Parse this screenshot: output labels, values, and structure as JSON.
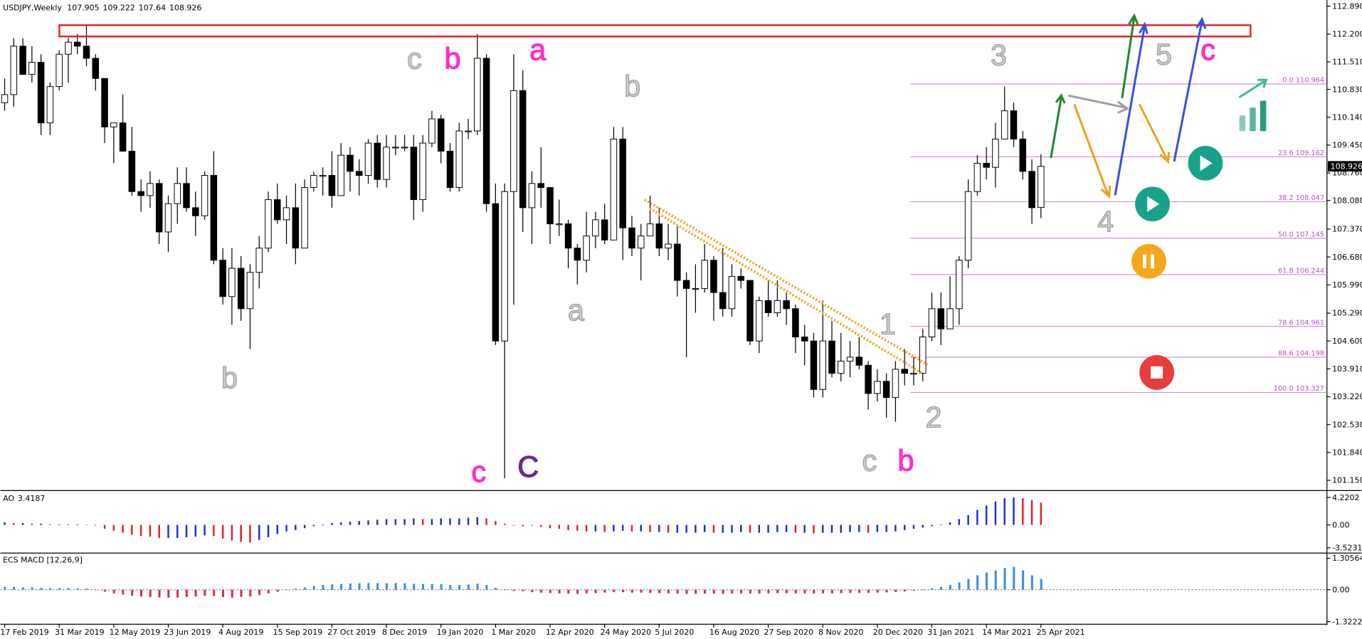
{
  "chart_data": [
    {
      "type": "candlestick",
      "title": "USDJPY,Weekly",
      "x_labels": [
        "17 Feb 2019",
        "31 Mar 2019",
        "12 May 2019",
        "23 Jun 2019",
        "4 Aug 2019",
        "15 Sep 2019",
        "27 Oct 2019",
        "8 Dec 2019",
        "19 Jan 2020",
        "1 Mar 2020",
        "12 Apr 2020",
        "24 May 2020",
        "5 Jul 2020",
        "16 Aug 2020",
        "27 Sep 2020",
        "8 Nov 2020",
        "20 Dec 2020",
        "31 Jan 2021",
        "14 Mar 2021",
        "25 Apr 2021"
      ],
      "open": [
        110.5,
        110.7,
        111.9,
        111.2,
        111.5,
        110.0,
        110.9,
        111.7,
        112.0,
        111.9,
        111.6,
        111.1,
        109.9,
        110.0,
        109.3,
        108.3,
        108.2,
        108.5,
        107.3,
        108.0,
        108.5,
        107.9,
        107.7,
        108.7,
        106.6,
        105.7,
        106.4,
        105.4,
        106.3,
        106.9,
        108.1,
        107.6,
        107.9,
        106.9,
        108.4,
        108.7,
        108.7,
        108.2,
        109.2,
        108.8,
        108.7,
        109.5,
        108.6,
        109.4,
        109.4,
        109.4,
        108.1,
        109.5,
        110.1,
        109.3,
        108.4,
        109.8,
        109.8,
        111.6,
        108.0,
        104.6,
        108.3,
        110.8,
        107.9,
        108.5,
        108.4,
        107.5,
        107.5,
        106.9,
        106.6,
        107.2,
        107.6,
        107.1,
        109.6,
        107.4,
        106.9,
        107.2,
        107.5,
        106.9,
        107.0,
        106.1,
        105.9,
        105.9,
        106.6,
        105.8,
        105.4,
        106.2,
        106.1,
        104.6,
        105.6,
        105.3,
        105.6,
        105.4,
        104.7,
        104.6,
        103.4,
        104.6,
        103.8,
        104.1,
        104.2,
        104.0,
        103.3,
        103.6,
        103.2,
        103.9,
        103.8,
        103.8,
        104.7,
        105.4,
        104.9,
        105.4,
        106.6,
        108.3,
        109.0,
        108.9,
        109.6,
        110.3,
        109.6,
        108.8,
        107.905
      ],
      "high": [
        111.1,
        112.1,
        112.1,
        111.9,
        111.7,
        111.0,
        111.8,
        112.1,
        112.2,
        112.4,
        111.7,
        111.1,
        110.0,
        110.7,
        109.9,
        108.6,
        108.8,
        108.6,
        108.2,
        108.9,
        108.9,
        108.3,
        108.8,
        109.3,
        106.9,
        106.9,
        106.7,
        106.5,
        107.2,
        108.3,
        108.5,
        108.2,
        108.5,
        108.6,
        108.8,
        108.9,
        109.3,
        109.5,
        109.4,
        109.1,
        109.6,
        109.7,
        109.7,
        109.7,
        109.7,
        109.7,
        109.7,
        110.3,
        110.2,
        109.5,
        110.0,
        110.1,
        112.2,
        111.7,
        108.5,
        108.5,
        111.7,
        111.3,
        108.8,
        109.4,
        108.4,
        108.1,
        107.6,
        107.0,
        107.8,
        107.8,
        108.0,
        109.9,
        109.9,
        107.7,
        107.5,
        108.2,
        107.9,
        107.5,
        107.5,
        106.3,
        106.5,
        107.0,
        106.7,
        106.9,
        106.5,
        106.4,
        106.1,
        105.7,
        106.1,
        106.1,
        105.8,
        105.5,
        105.0,
        104.8,
        105.6,
        105.1,
        104.8,
        104.6,
        104.7,
        104.1,
        103.9,
        103.8,
        104.1,
        104.4,
        104.2,
        104.9,
        105.8,
        105.8,
        106.2,
        106.7,
        108.6,
        109.2,
        109.4,
        110.0,
        110.9,
        110.5,
        109.8,
        109.1,
        109.222
      ],
      "low": [
        110.3,
        110.4,
        111.2,
        111.0,
        109.7,
        109.7,
        110.8,
        111.0,
        111.7,
        111.4,
        110.8,
        109.5,
        109.0,
        109.3,
        108.2,
        107.8,
        107.9,
        107.0,
        106.8,
        107.5,
        107.8,
        107.2,
        107.6,
        106.5,
        105.5,
        105.0,
        105.1,
        104.4,
        105.9,
        106.8,
        107.5,
        107.0,
        106.5,
        106.9,
        108.3,
        108.2,
        107.9,
        108.2,
        108.3,
        108.2,
        108.5,
        108.4,
        108.4,
        109.2,
        109.3,
        107.6,
        107.8,
        109.4,
        109.0,
        108.3,
        108.3,
        109.6,
        109.7,
        107.8,
        104.5,
        101.2,
        105.5,
        107.3,
        107.0,
        107.9,
        107.0,
        107.2,
        106.4,
        106.0,
        106.3,
        106.9,
        107.0,
        107.1,
        106.6,
        106.7,
        106.1,
        107.2,
        106.7,
        106.6,
        105.7,
        104.2,
        105.3,
        105.8,
        105.1,
        105.2,
        105.2,
        105.9,
        104.5,
        104.3,
        105.2,
        105.2,
        105.0,
        104.3,
        104.0,
        103.2,
        103.2,
        103.7,
        103.6,
        103.7,
        103.9,
        102.9,
        103.1,
        102.7,
        102.6,
        103.5,
        103.5,
        103.6,
        104.6,
        104.5,
        104.9,
        105.0,
        106.4,
        108.2,
        108.6,
        108.4,
        109.6,
        109.4,
        108.6,
        107.5,
        107.64
      ],
      "close": [
        110.7,
        111.9,
        111.2,
        111.5,
        110.0,
        110.9,
        111.7,
        112.0,
        111.9,
        111.6,
        111.1,
        109.9,
        110.0,
        109.3,
        108.3,
        108.2,
        108.5,
        107.3,
        108.0,
        108.5,
        107.9,
        107.7,
        108.7,
        106.6,
        105.7,
        106.4,
        105.4,
        106.3,
        106.9,
        108.1,
        107.6,
        107.9,
        106.9,
        108.4,
        108.7,
        108.7,
        108.2,
        109.2,
        108.8,
        108.7,
        109.5,
        108.6,
        109.4,
        109.4,
        109.4,
        108.1,
        109.5,
        110.1,
        109.3,
        108.4,
        109.8,
        109.8,
        111.6,
        108.0,
        104.6,
        108.3,
        110.8,
        107.9,
        108.5,
        108.4,
        107.5,
        107.5,
        106.9,
        106.6,
        107.2,
        107.6,
        107.1,
        109.6,
        107.4,
        106.9,
        107.2,
        107.5,
        106.9,
        107.0,
        106.1,
        105.9,
        105.9,
        106.6,
        105.8,
        105.4,
        106.2,
        106.1,
        104.6,
        105.6,
        105.3,
        105.6,
        105.4,
        104.7,
        104.6,
        103.4,
        104.6,
        103.8,
        104.1,
        104.2,
        104.0,
        103.3,
        103.6,
        103.2,
        103.9,
        103.8,
        103.8,
        104.7,
        105.4,
        104.9,
        105.4,
        106.6,
        108.3,
        109.0,
        108.9,
        109.6,
        110.3,
        109.6,
        108.8,
        107.9,
        108.926
      ],
      "ylim": [
        100.94,
        113.0
      ],
      "yticks": [
        {
          "value": 112.89,
          "label": "112.890"
        },
        {
          "value": 112.2,
          "label": "112.200"
        },
        {
          "value": 111.51,
          "label": "111.510"
        },
        {
          "value": 110.83,
          "label": "110.830"
        },
        {
          "value": 110.14,
          "label": "110.140"
        },
        {
          "value": 109.45,
          "label": "109.450"
        },
        {
          "value": 108.76,
          "label": "108.760"
        },
        {
          "value": 108.08,
          "label": "108.080"
        },
        {
          "value": 107.37,
          "label": "107.370"
        },
        {
          "value": 106.68,
          "label": "106.680"
        },
        {
          "value": 105.99,
          "label": "105.990"
        },
        {
          "value": 105.29,
          "label": "105.290"
        },
        {
          "value": 104.6,
          "label": "104.600"
        },
        {
          "value": 103.91,
          "label": "103.910"
        },
        {
          "value": 103.22,
          "label": "103.220"
        },
        {
          "value": 102.53,
          "label": "102.530"
        },
        {
          "value": 101.84,
          "label": "101.840"
        },
        {
          "value": 101.15,
          "label": "101.150"
        }
      ],
      "fib_levels": [
        {
          "value": 110.964,
          "label": "0.0 110.964"
        },
        {
          "value": 109.162,
          "label": "23.6 109.162"
        },
        {
          "value": 108.047,
          "label": "38.2 108.047"
        },
        {
          "value": 107.145,
          "label": "50.0 107.145"
        },
        {
          "value": 106.244,
          "label": "61.8 106.244"
        },
        {
          "value": 104.961,
          "label": "78.6 104.961"
        },
        {
          "value": 104.198,
          "label": "88.6 104.198"
        },
        {
          "value": 103.327,
          "label": "100.0 103.327"
        }
      ],
      "annotations": [
        {
          "text": "c",
          "color": "#d0d0d0"
        },
        {
          "text": "b",
          "color": "#ff2fc8"
        },
        {
          "text": "a",
          "color": "#ff2fc8"
        },
        {
          "text": "b",
          "color": "#d0d0d0"
        },
        {
          "text": "3",
          "color": "#d0d0d0"
        },
        {
          "text": "5",
          "color": "#d0d0d0"
        },
        {
          "text": "c",
          "color": "#ff2fc8"
        },
        {
          "text": "b",
          "color": "#d0d0d0"
        },
        {
          "text": "a",
          "color": "#d0d0d0"
        },
        {
          "text": "1",
          "color": "#d0d0d0"
        },
        {
          "text": "2",
          "color": "#d0d0d0"
        },
        {
          "text": "4",
          "color": "#d0d0d0"
        },
        {
          "text": "c",
          "color": "#ff2fc8"
        },
        {
          "text": "C",
          "color": "#6a2a8c"
        },
        {
          "text": "c",
          "color": "#d0d0d0"
        },
        {
          "text": "b",
          "color": "#ff2fc8"
        }
      ]
    },
    {
      "type": "histogram_oscillator",
      "title": "AO",
      "values": [
        0.4,
        0.3,
        0.3,
        0.2,
        0.2,
        0.1,
        0.1,
        0.1,
        0.1,
        0.05,
        -0.1,
        -0.6,
        -0.9,
        -1.2,
        -1.5,
        -1.7,
        -1.8,
        -2.0,
        -2.0,
        -2.0,
        -1.9,
        -1.8,
        -1.6,
        -1.7,
        -2.1,
        -2.4,
        -2.6,
        -2.7,
        -2.3,
        -1.9,
        -1.4,
        -1.0,
        -0.8,
        -0.5,
        -0.2,
        0.1,
        0.3,
        0.4,
        0.5,
        0.6,
        0.7,
        0.8,
        0.9,
        0.9,
        0.9,
        1.0,
        0.9,
        0.9,
        1.0,
        1.0,
        1.0,
        1.1,
        1.2,
        1.0,
        0.6,
        0.2,
        -0.1,
        -0.2,
        -0.1,
        -0.3,
        -0.5,
        -0.6,
        -0.8,
        -0.9,
        -1.0,
        -1.0,
        -1.1,
        -1.0,
        -0.9,
        -1.0,
        -1.0,
        -1.1,
        -1.1,
        -1.2,
        -1.2,
        -1.2,
        -1.2,
        -1.1,
        -1.2,
        -1.2,
        -1.2,
        -1.1,
        -1.2,
        -1.2,
        -1.2,
        -1.1,
        -1.1,
        -1.2,
        -1.2,
        -1.3,
        -1.2,
        -1.2,
        -1.2,
        -1.1,
        -1.1,
        -1.2,
        -1.1,
        -1.1,
        -1.0,
        -0.8,
        -0.6,
        -0.4,
        -0.2,
        0.1,
        0.4,
        0.9,
        1.5,
        2.3,
        3.0,
        3.6,
        4.1,
        4.2,
        4.1,
        3.8,
        3.4187
      ],
      "ylim": [
        -4.19,
        5.02
      ],
      "yticks": [
        4.2202,
        {
          "value": 0,
          "label": "0.00"
        },
        -3.5231
      ]
    },
    {
      "type": "macd",
      "title": "ECS MACD [12,26,9]",
      "values": [
        0.12,
        0.12,
        0.1,
        0.1,
        0.08,
        0.07,
        0.07,
        0.07,
        0.06,
        0.05,
        0.0,
        -0.08,
        -0.15,
        -0.2,
        -0.25,
        -0.28,
        -0.3,
        -0.32,
        -0.33,
        -0.32,
        -0.3,
        -0.28,
        -0.25,
        -0.26,
        -0.3,
        -0.33,
        -0.3,
        -0.28,
        -0.22,
        -0.15,
        -0.08,
        0.0,
        0.05,
        0.1,
        0.15,
        0.2,
        0.22,
        0.24,
        0.26,
        0.27,
        0.28,
        0.28,
        0.27,
        0.28,
        0.27,
        0.25,
        0.24,
        0.24,
        0.23,
        0.2,
        0.2,
        0.22,
        0.25,
        0.2,
        0.08,
        -0.02,
        -0.05,
        -0.06,
        -0.1,
        -0.12,
        -0.14,
        -0.15,
        -0.16,
        -0.17,
        -0.15,
        -0.14,
        -0.12,
        -0.1,
        -0.1,
        -0.12,
        -0.12,
        -0.13,
        -0.14,
        -0.15,
        -0.16,
        -0.17,
        -0.17,
        -0.16,
        -0.16,
        -0.17,
        -0.16,
        -0.15,
        -0.16,
        -0.16,
        -0.15,
        -0.14,
        -0.14,
        -0.15,
        -0.15,
        -0.16,
        -0.15,
        -0.15,
        -0.14,
        -0.13,
        -0.13,
        -0.13,
        -0.12,
        -0.11,
        -0.09,
        -0.07,
        -0.04,
        0.0,
        0.06,
        0.12,
        0.2,
        0.3,
        0.45,
        0.6,
        0.72,
        0.8,
        0.9,
        0.95,
        0.8,
        0.6,
        0.45
      ],
      "ylim": [
        -1.394,
        1.486
      ],
      "yticks": [
        1.30564,
        {
          "value": 0,
          "label": "0.00"
        },
        -1.32223
      ]
    }
  ]
}
